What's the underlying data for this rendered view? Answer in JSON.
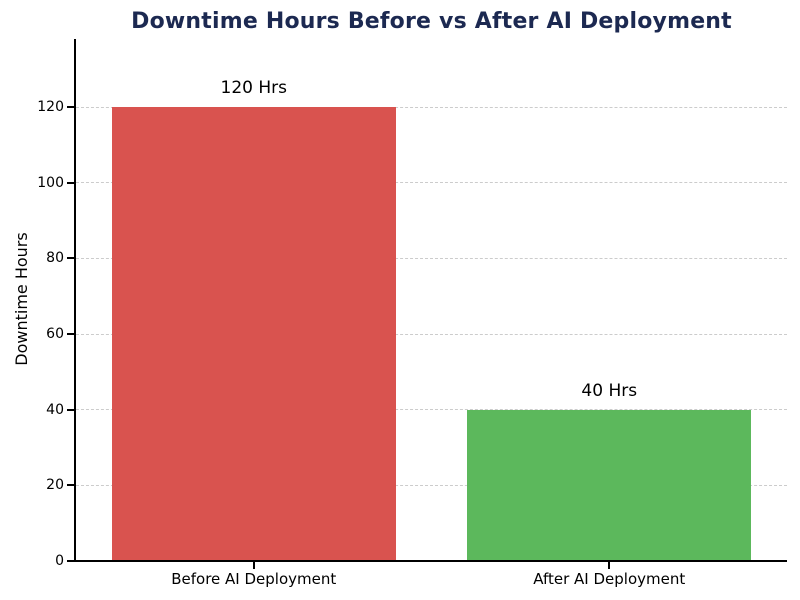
{
  "chart_data": {
    "type": "bar",
    "title": "Downtime Hours Before vs After AI Deployment",
    "ylabel": "Downtime Hours",
    "xlabel": "",
    "categories": [
      "Before AI Deployment",
      "After AI Deployment"
    ],
    "values": [
      120,
      40
    ],
    "value_labels": [
      "120 Hrs",
      "40 Hrs"
    ],
    "bar_colors": [
      "#d9534f",
      "#5cb85c"
    ],
    "yticks": [
      0,
      20,
      40,
      60,
      80,
      100,
      120
    ],
    "ylim": [
      0,
      138
    ],
    "grid": "horizontal-dashed",
    "legend": "none"
  },
  "colors": {
    "title": "#1c2951",
    "bar_before": "#d9534f",
    "bar_after": "#5cb85c",
    "grid": "#cccccc",
    "axis": "#000000",
    "background": "#ffffff"
  }
}
